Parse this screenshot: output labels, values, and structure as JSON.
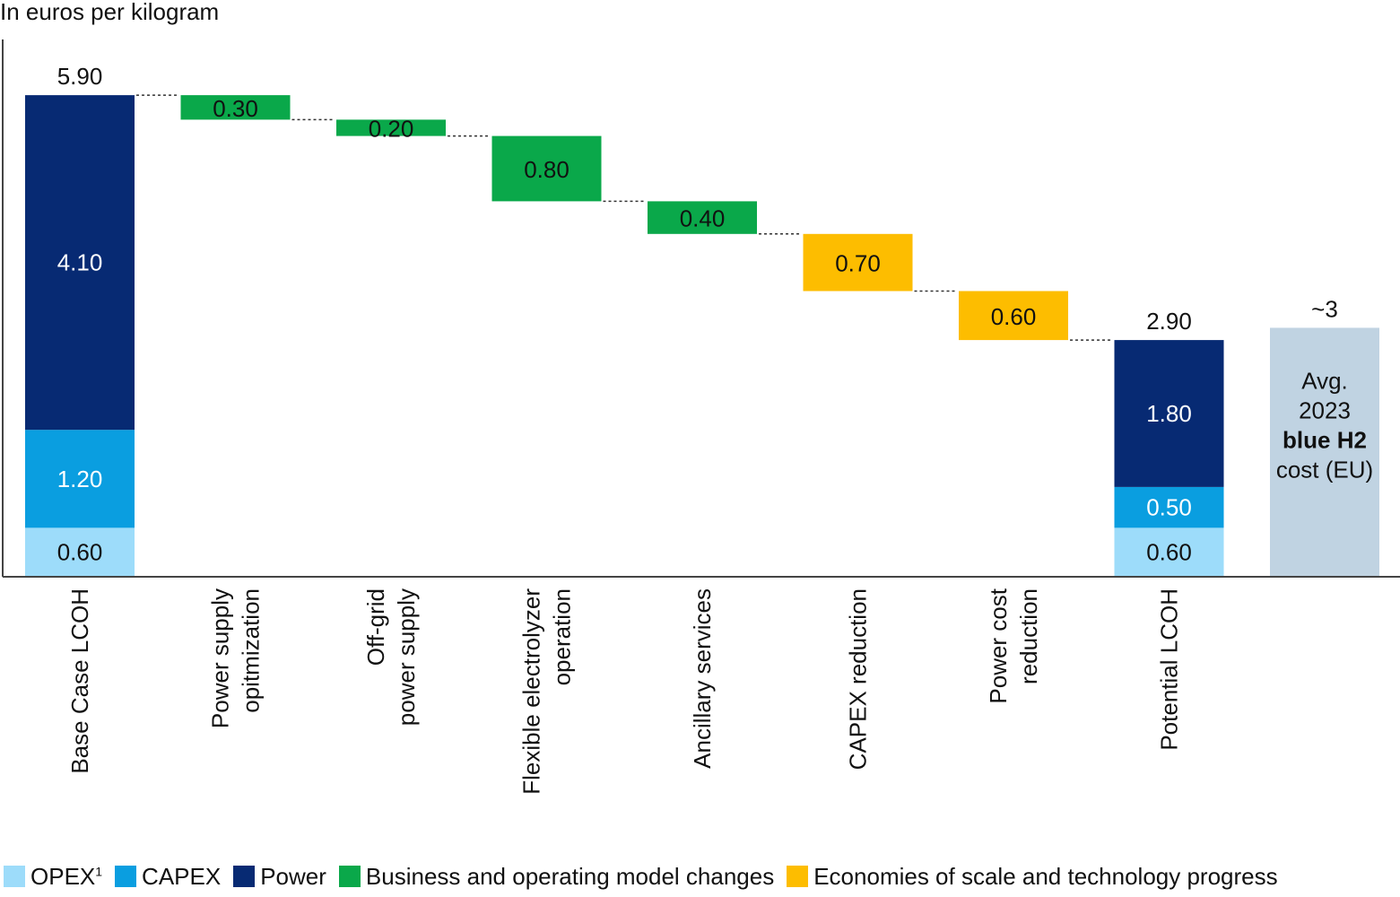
{
  "chart_data": {
    "type": "bar",
    "subtype": "waterfall",
    "unit_label": "In euros per kilogram",
    "ylim": [
      0,
      6.6
    ],
    "grid": false,
    "legend_position": "bottom",
    "colors": {
      "opex": "#9ddcfa",
      "capex": "#0a9ee0",
      "power": "#072a73",
      "business": "#0aa84a",
      "scale": "#fdbd00",
      "benchmark": "#c0d3e2",
      "connector": "#333333",
      "axis": "#444444"
    },
    "legend": [
      {
        "key": "opex",
        "label": "OPEX",
        "sup": "1"
      },
      {
        "key": "capex",
        "label": "CAPEX",
        "sup": ""
      },
      {
        "key": "power",
        "label": "Power",
        "sup": ""
      },
      {
        "key": "business",
        "label": "Business and operating model changes",
        "sup": ""
      },
      {
        "key": "scale",
        "label": "Economies of scale and technology progress",
        "sup": ""
      }
    ],
    "bars": [
      {
        "category": [
          "Base Case LCOH"
        ],
        "kind": "stack",
        "total": 5.9,
        "total_label": "5.90",
        "segments": [
          {
            "key": "opex",
            "value": 0.6,
            "label": "0.60"
          },
          {
            "key": "capex",
            "value": 1.2,
            "label": "1.20"
          },
          {
            "key": "power",
            "value": 4.1,
            "label": "4.10"
          }
        ]
      },
      {
        "category": [
          "Power supply",
          "opitmization"
        ],
        "kind": "step",
        "key": "business",
        "from": 5.9,
        "to": 5.6,
        "label": "0.30"
      },
      {
        "category": [
          "Off-grid",
          "power supply"
        ],
        "kind": "step",
        "key": "business",
        "from": 5.6,
        "to": 5.4,
        "label": "0.20"
      },
      {
        "category": [
          "Flexible electrolyzer",
          "operation"
        ],
        "kind": "step",
        "key": "business",
        "from": 5.4,
        "to": 4.6,
        "label": "0.80"
      },
      {
        "category": [
          "Ancillary services"
        ],
        "kind": "step",
        "key": "business",
        "from": 4.6,
        "to": 4.2,
        "label": "0.40"
      },
      {
        "category": [
          "CAPEX reduction"
        ],
        "kind": "step",
        "key": "scale",
        "from": 4.2,
        "to": 3.5,
        "label": "0.70"
      },
      {
        "category": [
          "Power cost",
          "reduction"
        ],
        "kind": "step",
        "key": "scale",
        "from": 3.5,
        "to": 2.9,
        "label": "0.60"
      },
      {
        "category": [
          "Potential LCOH"
        ],
        "kind": "stack",
        "total": 2.9,
        "total_label": "2.90",
        "segments": [
          {
            "key": "opex",
            "value": 0.6,
            "label": "0.60"
          },
          {
            "key": "capex",
            "value": 0.5,
            "label": "0.50"
          },
          {
            "key": "power",
            "value": 1.8,
            "label": "1.80"
          }
        ]
      },
      {
        "category": [],
        "kind": "benchmark",
        "key": "benchmark",
        "value": 3.05,
        "top_label": "~3",
        "text_lines": [
          {
            "text": "Avg.",
            "bold": false
          },
          {
            "text": "2023",
            "bold": false
          },
          {
            "text": "blue H2",
            "bold": true
          },
          {
            "text": "cost (EU)",
            "bold": false
          }
        ]
      }
    ]
  }
}
